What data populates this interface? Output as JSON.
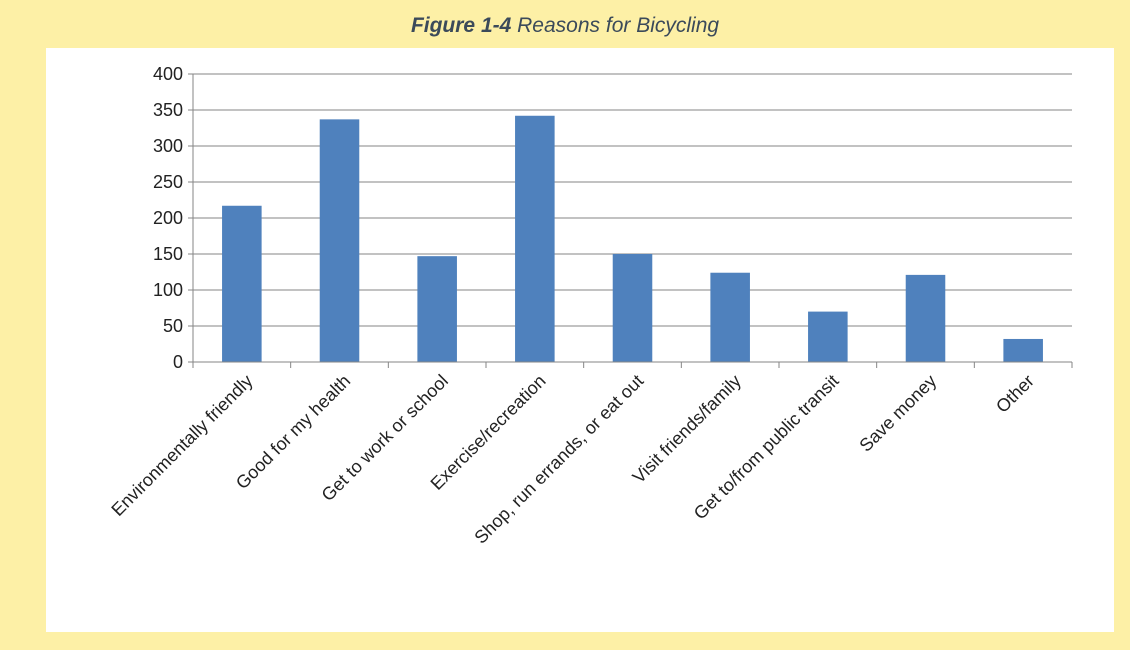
{
  "figure": {
    "number": "Figure 1-4",
    "caption": "Reasons for Bicycling"
  },
  "chart_data": {
    "type": "bar",
    "title": "",
    "xlabel": "",
    "ylabel": "",
    "ylim": [
      0,
      400
    ],
    "yticks": [
      0,
      50,
      100,
      150,
      200,
      250,
      300,
      350,
      400
    ],
    "grid": true,
    "legend": "none",
    "bar_color": "#4f81bd",
    "categories": [
      "Environmentally friendly",
      "Good for my health",
      "Get to work or school",
      "Exercise/recreation",
      "Shop, run errands, or eat out",
      "Visit friends/family",
      "Get to/from public transit",
      "Save money",
      "Other"
    ],
    "values": [
      217,
      337,
      147,
      342,
      150,
      124,
      70,
      121,
      32
    ]
  }
}
